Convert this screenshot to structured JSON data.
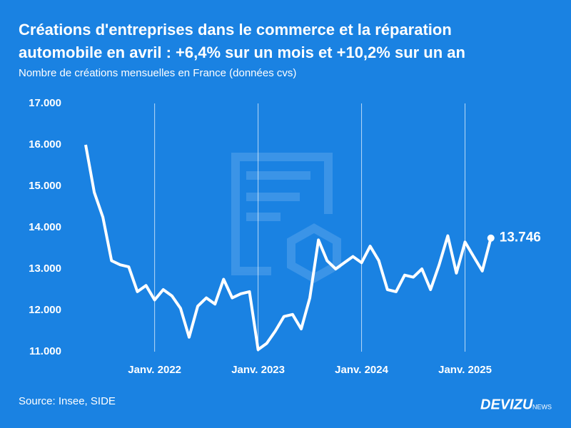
{
  "chart_data": {
    "type": "line",
    "title": "Créations d'entreprises dans le commerce et la réparation",
    "title_line2": "automobile en avril : +6,4% sur un mois et +10,2% sur un an",
    "subtitle": "Nombre de créations mensuelles en France (données cvs)",
    "categories": [
      null,
      null,
      null,
      null,
      null,
      null,
      null,
      null,
      "Janv. 2022",
      null,
      null,
      null,
      null,
      null,
      null,
      null,
      null,
      null,
      null,
      null,
      "Janv. 2023",
      null,
      null,
      null,
      null,
      null,
      null,
      null,
      null,
      null,
      null,
      null,
      "Janv. 2024",
      null,
      null,
      null,
      null,
      null,
      null,
      null,
      null,
      null,
      null,
      null,
      "Janv. 2025",
      null,
      null,
      null
    ],
    "values": [
      16000,
      14850,
      14250,
      13200,
      13100,
      13050,
      12450,
      12600,
      12250,
      12500,
      12350,
      12050,
      11350,
      12100,
      12300,
      12150,
      12750,
      12300,
      12400,
      12450,
      11050,
      11200,
      11500,
      11850,
      11900,
      11550,
      12300,
      13700,
      13200,
      13000,
      13150,
      13300,
      13150,
      13550,
      13200,
      12500,
      12450,
      12850,
      12800,
      13000,
      12500,
      13100,
      13800,
      12900,
      13650,
      13300,
      12950,
      13746
    ],
    "value_labels": [
      null,
      null,
      null,
      null,
      null,
      null,
      null,
      null,
      null,
      null,
      null,
      null,
      null,
      null,
      null,
      null,
      null,
      null,
      null,
      null,
      null,
      null,
      null,
      null,
      null,
      null,
      null,
      null,
      null,
      null,
      null,
      null,
      null,
      null,
      null,
      null,
      null,
      null,
      null,
      null,
      null,
      null,
      null,
      null,
      null,
      null,
      null,
      "13.746"
    ],
    "color": "#ffffff",
    "ylim": [
      11000,
      17000
    ],
    "yticks": [
      {
        "value": 11000,
        "label": "11.000"
      },
      {
        "value": 12000,
        "label": "12.000"
      },
      {
        "value": 13000,
        "label": "13.000"
      },
      {
        "value": 14000,
        "label": "14.000"
      },
      {
        "value": 15000,
        "label": "15.000"
      },
      {
        "value": 16000,
        "label": "16.000"
      },
      {
        "value": 17000,
        "label": "17.000"
      }
    ],
    "grid": true,
    "source": "Source: Insee, SIDE",
    "brand": "DEVIZU",
    "brand_suffix": "NEWS"
  }
}
